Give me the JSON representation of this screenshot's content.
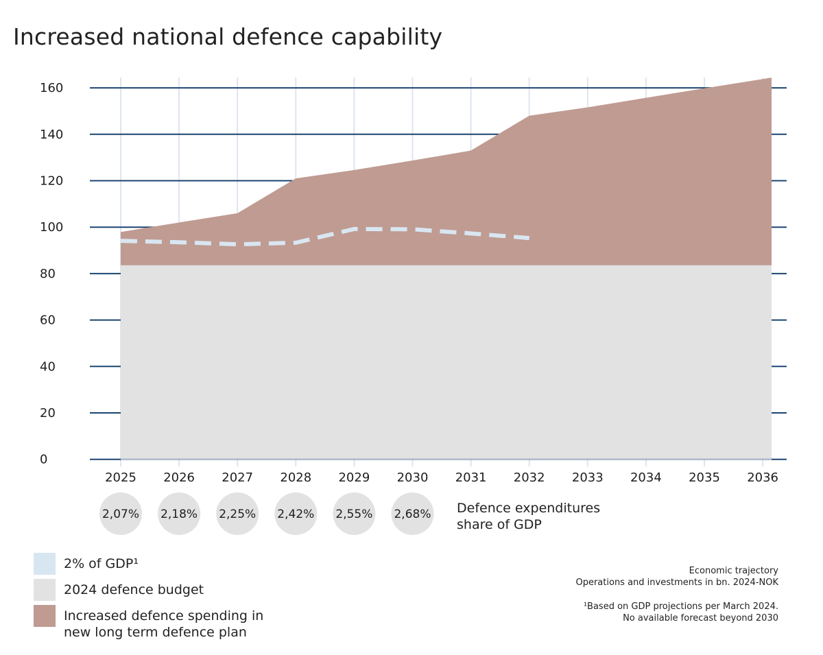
{
  "title": "Increased national defence capability",
  "colors": {
    "budget_2024": "#e2e2e2",
    "increased_spending": "#bf9b92",
    "gdp_2pct": "#d8e6f1",
    "gridline_h": "#1b4470",
    "gridline_v": "#dde5ee",
    "pct_circle": "#e2e2e2"
  },
  "chart_data": {
    "type": "area",
    "title": "Increased national defence capability",
    "xlabel": "",
    "ylabel": "",
    "x": [
      2025,
      2026,
      2027,
      2028,
      2029,
      2030,
      2031,
      2032,
      2033,
      2034,
      2035,
      2036
    ],
    "x_tick_labels": [
      "2025",
      "2026",
      "2027",
      "2028",
      "2029",
      "2030",
      "2031",
      "2032",
      "2033",
      "2034",
      "2035",
      "2036"
    ],
    "y_ticks": [
      0,
      20,
      40,
      60,
      80,
      100,
      120,
      140,
      160
    ],
    "y_tick_labels": [
      "0",
      "20",
      "40",
      "60",
      "80",
      "100",
      "120",
      "140",
      "160"
    ],
    "ylim": [
      0,
      165
    ],
    "grid": true,
    "legend_position": "bottom-left",
    "series": [
      {
        "name": "2024 defence budget",
        "kind": "stacked-area-base",
        "values": [
          83.6,
          83.6,
          83.6,
          83.6,
          83.6,
          83.6,
          83.6,
          83.6,
          83.6,
          83.6,
          83.6,
          83.6
        ]
      },
      {
        "name": "Increased defence spending in new long term defence plan",
        "kind": "stacked-area-top",
        "total_values": [
          97.9,
          102,
          106,
          121,
          124.6,
          128.7,
          133,
          148,
          151.6,
          155.7,
          159.8,
          163.8
        ]
      },
      {
        "name": "2% of GDP¹",
        "kind": "dashed-line",
        "x": [
          2025,
          2026,
          2027,
          2028,
          2029,
          2030,
          2031,
          2032
        ],
        "values": [
          94.1,
          93.5,
          92.6,
          93.3,
          99.2,
          99.1,
          97.3,
          95.3
        ]
      }
    ],
    "gdp_share": {
      "label": "Defence expenditures share of GDP",
      "years": [
        2025,
        2026,
        2027,
        2028,
        2029,
        2030
      ],
      "values": [
        "2,07%",
        "2,18%",
        "2,25%",
        "2,42%",
        "2,55%",
        "2,68%"
      ]
    }
  },
  "gdp_share_label_line1": "Defence expenditures",
  "gdp_share_label_line2": "share of GDP",
  "legend": [
    {
      "label": "2% of GDP¹",
      "color_key": "gdp_2pct"
    },
    {
      "label": "2024 defence budget",
      "color_key": "budget_2024"
    },
    {
      "label_line1": "Increased defence spending in",
      "label_line2": "new long term defence plan",
      "color_key": "increased_spending"
    }
  ],
  "notes": {
    "line1": "Economic trajectory",
    "line2": "Operations and investments in bn. 2024-NOK",
    "footnote1": "¹Based on GDP projections per March 2024.",
    "footnote2": "No available forecast beyond 2030"
  }
}
